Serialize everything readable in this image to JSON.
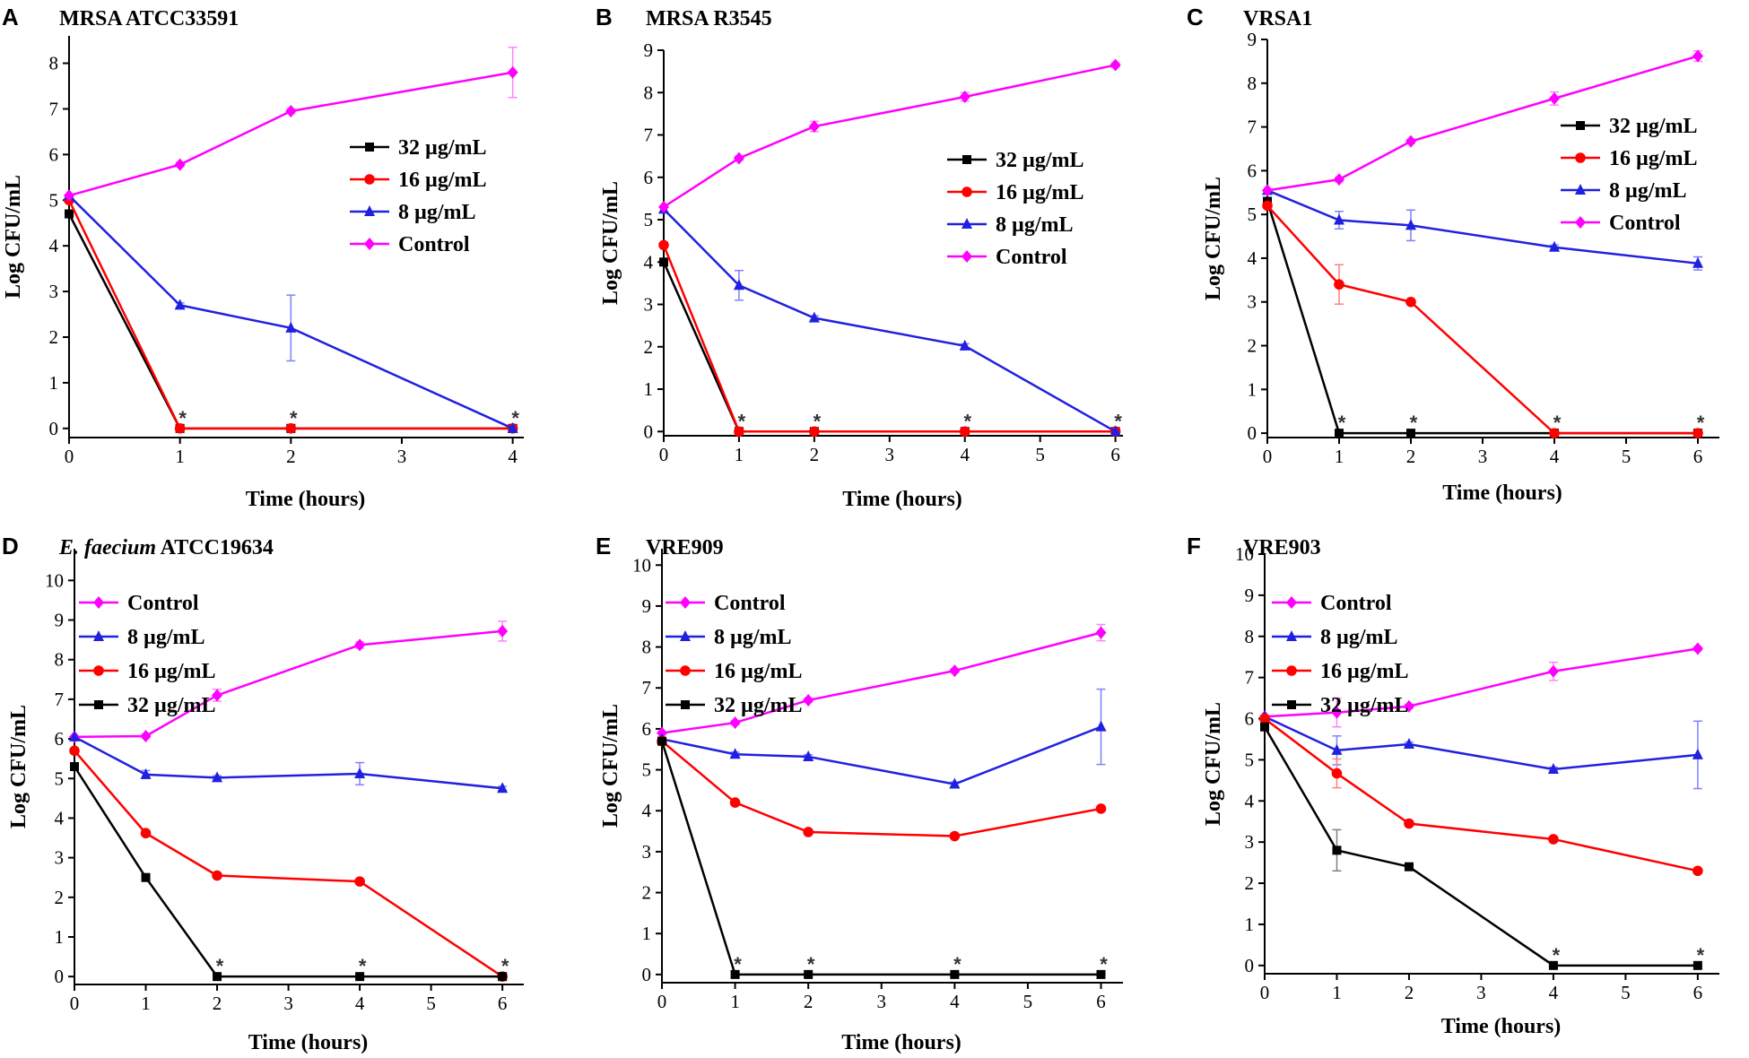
{
  "colors": {
    "32 µg/mL": "#000000",
    "16 µg/mL": "#ff0000",
    "8 µg/mL": "#2020e0",
    "Control": "#ff00ff",
    "error_8": "#8080ff",
    "error_control": "#ff80ff",
    "error_16": "#ff8080",
    "error_32": "#808080"
  },
  "chart_data": [
    {
      "panel": "A",
      "title": "MRSA ATCC33591",
      "type": "line",
      "xlabel": "Time (hours)",
      "ylabel": "Log CFU/mL",
      "xlim": [
        0,
        4.1
      ],
      "ylim": [
        -0.2,
        8.6
      ],
      "xticks": [
        0,
        1,
        2,
        3,
        4
      ],
      "yticks": [
        0,
        1,
        2,
        3,
        4,
        5,
        6,
        7,
        8
      ],
      "legend_order": [
        "32 µg/mL",
        "16 µg/mL",
        "8 µg/mL",
        "Control"
      ],
      "legend_position": "top-right",
      "series": [
        {
          "name": "32 µg/mL",
          "marker": "square",
          "x": [
            0,
            1,
            2,
            4
          ],
          "y": [
            4.7,
            0,
            0,
            0
          ]
        },
        {
          "name": "16 µg/mL",
          "marker": "circle",
          "x": [
            0,
            1,
            2,
            4
          ],
          "y": [
            5.0,
            0,
            0,
            0
          ]
        },
        {
          "name": "8 µg/mL",
          "marker": "triangle",
          "x": [
            0,
            1,
            2,
            4
          ],
          "y": [
            5.1,
            2.7,
            2.2,
            0
          ],
          "err": [
            0,
            0.05,
            0.72,
            0
          ]
        },
        {
          "name": "Control",
          "marker": "diamond",
          "x": [
            0,
            1,
            2,
            4
          ],
          "y": [
            5.1,
            5.78,
            6.95,
            7.8
          ],
          "err": [
            0,
            0.05,
            0.05,
            0.55
          ]
        }
      ],
      "significance_markers": {
        "label": "*",
        "x": [
          1,
          2,
          4
        ]
      }
    },
    {
      "panel": "B",
      "title": "MRSA R3545",
      "type": "line",
      "xlabel": "Time (hours)",
      "ylabel": "Log CFU/mL",
      "xlim": [
        0,
        6.1
      ],
      "ylim": [
        -0.1,
        9.0
      ],
      "xticks": [
        0,
        1,
        2,
        3,
        4,
        5,
        6
      ],
      "yticks": [
        0,
        1,
        2,
        3,
        4,
        5,
        6,
        7,
        8,
        9
      ],
      "legend_order": [
        "32 µg/mL",
        "16 µg/mL",
        "8 µg/mL",
        "Control"
      ],
      "legend_position": "middle-right",
      "series": [
        {
          "name": "32 µg/mL",
          "marker": "square",
          "x": [
            0,
            1,
            2,
            4,
            6
          ],
          "y": [
            4.0,
            0,
            0,
            0,
            0
          ]
        },
        {
          "name": "16 µg/mL",
          "marker": "circle",
          "x": [
            0,
            1,
            2,
            4,
            6
          ],
          "y": [
            4.4,
            0,
            0,
            0,
            0
          ]
        },
        {
          "name": "8 µg/mL",
          "marker": "triangle",
          "x": [
            0,
            1,
            2,
            4,
            6
          ],
          "y": [
            5.25,
            3.45,
            2.68,
            2.02,
            0
          ],
          "err": [
            0,
            0.35,
            0.05,
            0.05,
            0
          ]
        },
        {
          "name": "Control",
          "marker": "diamond",
          "x": [
            0,
            1,
            2,
            4,
            6
          ],
          "y": [
            5.3,
            6.45,
            7.2,
            7.9,
            8.65
          ],
          "err": [
            0,
            0.05,
            0.12,
            0.1,
            0.05
          ]
        }
      ],
      "significance_markers": {
        "label": "*",
        "x": [
          1,
          2,
          4,
          6
        ]
      }
    },
    {
      "panel": "C",
      "title": "VRSA1",
      "type": "line",
      "xlabel": "Time (hours)",
      "ylabel": "Log CFU/mL",
      "xlim": [
        0,
        6.3
      ],
      "ylim": [
        -0.1,
        9.0
      ],
      "xticks": [
        0,
        1,
        2,
        3,
        4,
        5,
        6
      ],
      "yticks": [
        0,
        1,
        2,
        3,
        4,
        5,
        6,
        7,
        8,
        9
      ],
      "legend_order": [
        "32 µg/mL",
        "16 µg/mL",
        "8 µg/mL",
        "Control"
      ],
      "legend_position": "top-right",
      "series": [
        {
          "name": "32 µg/mL",
          "marker": "square",
          "x": [
            0,
            1,
            2,
            4,
            6
          ],
          "y": [
            5.3,
            0,
            0,
            0,
            0
          ]
        },
        {
          "name": "16 µg/mL",
          "marker": "circle",
          "x": [
            0,
            1,
            2,
            4,
            6
          ],
          "y": [
            5.2,
            3.4,
            3.0,
            0,
            0
          ],
          "err": [
            0,
            0.45,
            0.05,
            0,
            0
          ]
        },
        {
          "name": "8 µg/mL",
          "marker": "triangle",
          "x": [
            0,
            1,
            2,
            4,
            6
          ],
          "y": [
            5.55,
            4.87,
            4.75,
            4.25,
            3.88
          ],
          "err": [
            0,
            0.2,
            0.35,
            0.05,
            0.15
          ]
        },
        {
          "name": "Control",
          "marker": "diamond",
          "x": [
            0,
            1,
            2,
            4,
            6
          ],
          "y": [
            5.55,
            5.8,
            6.67,
            7.65,
            8.62
          ],
          "err": [
            0,
            0.05,
            0.05,
            0.15,
            0.12
          ]
        }
      ],
      "significance_markers": {
        "label": "*",
        "x": [
          1,
          2,
          4,
          6
        ]
      }
    },
    {
      "panel": "D",
      "title": "E. faecium ATCC19634",
      "title_italic": "E. faecium",
      "title_rest": " ATCC19634",
      "type": "line",
      "xlabel": "Time (hours)",
      "ylabel": "Log CFU/mL",
      "xlim": [
        0,
        6.3
      ],
      "ylim": [
        -0.2,
        10.8
      ],
      "xticks": [
        0,
        1,
        2,
        3,
        4,
        5,
        6
      ],
      "yticks": [
        0,
        1,
        2,
        3,
        4,
        5,
        6,
        7,
        8,
        9,
        10
      ],
      "legend_order": [
        "Control",
        "8 µg/mL",
        "16 µg/mL",
        "32 µg/mL"
      ],
      "legend_position": "top-left",
      "series": [
        {
          "name": "Control",
          "marker": "diamond",
          "x": [
            0,
            1,
            2,
            4,
            6
          ],
          "y": [
            6.05,
            6.07,
            7.1,
            8.37,
            8.72
          ],
          "err": [
            0,
            0.05,
            0.15,
            0.08,
            0.25
          ]
        },
        {
          "name": "8 µg/mL",
          "marker": "triangle",
          "x": [
            0,
            1,
            2,
            4,
            6
          ],
          "y": [
            6.05,
            5.1,
            5.02,
            5.12,
            4.75
          ],
          "err": [
            0,
            0.1,
            0.05,
            0.28,
            0.05
          ]
        },
        {
          "name": "16 µg/mL",
          "marker": "circle",
          "x": [
            0,
            1,
            2,
            4,
            6
          ],
          "y": [
            5.7,
            3.62,
            2.55,
            2.4,
            0
          ]
        },
        {
          "name": "32 µg/mL",
          "marker": "square",
          "x": [
            0,
            1,
            2,
            4,
            6
          ],
          "y": [
            5.3,
            2.5,
            0,
            0,
            0
          ]
        }
      ],
      "significance_markers": {
        "label": "*",
        "x": [
          2,
          4,
          6
        ]
      }
    },
    {
      "panel": "E",
      "title": "VRE909",
      "type": "line",
      "xlabel": "Time (hours)",
      "ylabel": "Log CFU/mL",
      "xlim": [
        0,
        6.3
      ],
      "ylim": [
        -0.2,
        10.4
      ],
      "xticks": [
        0,
        1,
        2,
        3,
        4,
        5,
        6
      ],
      "yticks": [
        0,
        1,
        2,
        3,
        4,
        5,
        6,
        7,
        8,
        9,
        10
      ],
      "legend_order": [
        "Control",
        "8 µg/mL",
        "16 µg/mL",
        "32 µg/mL"
      ],
      "legend_position": "top-left",
      "series": [
        {
          "name": "Control",
          "marker": "diamond",
          "x": [
            0,
            1,
            2,
            4,
            6
          ],
          "y": [
            5.9,
            6.15,
            6.7,
            7.42,
            8.35
          ],
          "err": [
            0,
            0.05,
            0.05,
            0.05,
            0.2
          ]
        },
        {
          "name": "8 µg/mL",
          "marker": "triangle",
          "x": [
            0,
            1,
            2,
            4,
            6
          ],
          "y": [
            5.75,
            5.38,
            5.32,
            4.65,
            6.05
          ],
          "err": [
            0,
            0.05,
            0.05,
            0.05,
            0.92
          ]
        },
        {
          "name": "16 µg/mL",
          "marker": "circle",
          "x": [
            0,
            1,
            2,
            4,
            6
          ],
          "y": [
            5.7,
            4.2,
            3.48,
            3.38,
            4.05
          ]
        },
        {
          "name": "32 µg/mL",
          "marker": "square",
          "x": [
            0,
            1,
            2,
            4,
            6
          ],
          "y": [
            5.7,
            0,
            0,
            0,
            0
          ]
        }
      ],
      "significance_markers": {
        "label": "*",
        "x": [
          1,
          2,
          4,
          6
        ]
      }
    },
    {
      "panel": "F",
      "title": "VRE903",
      "type": "line",
      "xlabel": "Time (hours)",
      "ylabel": "Log CFU/mL",
      "xlim": [
        0,
        6.3
      ],
      "ylim": [
        -0.2,
        10.0
      ],
      "xticks": [
        0,
        1,
        2,
        3,
        4,
        5,
        6
      ],
      "yticks": [
        0,
        1,
        2,
        3,
        4,
        5,
        6,
        7,
        8,
        9,
        10
      ],
      "legend_order": [
        "Control",
        "8 µg/mL",
        "16 µg/mL",
        "32 µg/mL"
      ],
      "legend_position": "top-left",
      "series": [
        {
          "name": "Control",
          "marker": "diamond",
          "x": [
            0,
            1,
            2,
            4,
            6
          ],
          "y": [
            6.05,
            6.15,
            6.3,
            7.15,
            7.7
          ],
          "err": [
            0,
            0.35,
            0.05,
            0.22,
            0.05
          ]
        },
        {
          "name": "8 µg/mL",
          "marker": "triangle",
          "x": [
            0,
            1,
            2,
            4,
            6
          ],
          "y": [
            6.05,
            5.23,
            5.38,
            4.77,
            5.12
          ],
          "err": [
            0,
            0.35,
            0.05,
            0.05,
            0.82
          ]
        },
        {
          "name": "16 µg/mL",
          "marker": "circle",
          "x": [
            0,
            1,
            2,
            4,
            6
          ],
          "y": [
            6.0,
            4.67,
            3.45,
            3.07,
            2.3
          ],
          "err": [
            0,
            0.35,
            0.05,
            0.05,
            0.05
          ]
        },
        {
          "name": "32 µg/mL",
          "marker": "square",
          "x": [
            0,
            1,
            2,
            4,
            6
          ],
          "y": [
            5.8,
            2.8,
            2.4,
            0,
            0
          ],
          "err": [
            0,
            0.5,
            0.05,
            0,
            0
          ]
        }
      ],
      "significance_markers": {
        "label": "*",
        "x": [
          4,
          6
        ]
      }
    }
  ]
}
